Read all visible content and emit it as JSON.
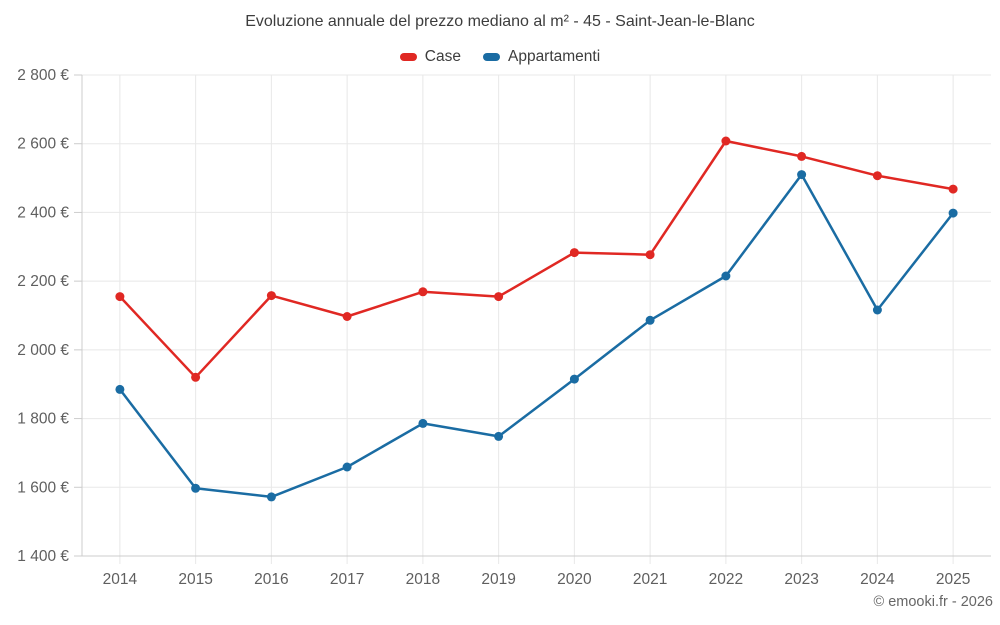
{
  "header": {
    "title": "Evoluzione annuale del prezzo mediano al m² - 45 - Saint-Jean-le-Blanc"
  },
  "footer": {
    "credit": "© emooki.fr - 2026"
  },
  "chart_data": {
    "type": "line",
    "title": "Evoluzione annuale del prezzo mediano al m² - 45 - Saint-Jean-le-Blanc",
    "x": [
      "2014",
      "2015",
      "2016",
      "2017",
      "2018",
      "2019",
      "2020",
      "2021",
      "2022",
      "2023",
      "2024",
      "2025"
    ],
    "series": [
      {
        "name": "Case",
        "color": "#e02823",
        "values": [
          2155,
          1920,
          2158,
          2097,
          2169,
          2155,
          2283,
          2277,
          2608,
          2563,
          2507,
          2468
        ]
      },
      {
        "name": "Appartamenti",
        "color": "#1a6ca3",
        "values": [
          1885,
          1597,
          1572,
          1659,
          1786,
          1748,
          1915,
          2086,
          2215,
          2510,
          2116,
          2398
        ]
      }
    ],
    "ylim": [
      1400,
      2800
    ],
    "ytick_step": 200,
    "yticks": [
      {
        "v": 1400,
        "label": "1 400 €"
      },
      {
        "v": 1600,
        "label": "1 600 €"
      },
      {
        "v": 1800,
        "label": "1 800 €"
      },
      {
        "v": 2000,
        "label": "2 000 €"
      },
      {
        "v": 2200,
        "label": "2 200 €"
      },
      {
        "v": 2400,
        "label": "2 400 €"
      },
      {
        "v": 2600,
        "label": "2 600 €"
      },
      {
        "v": 2800,
        "label": "2 800 €"
      }
    ],
    "grid": true,
    "legend_position": "top",
    "colors": {
      "grid": "#e8e8e8",
      "axis": "#cccccc",
      "tick_text": "#5f5f5f",
      "title_text": "#3d3d3d"
    }
  }
}
